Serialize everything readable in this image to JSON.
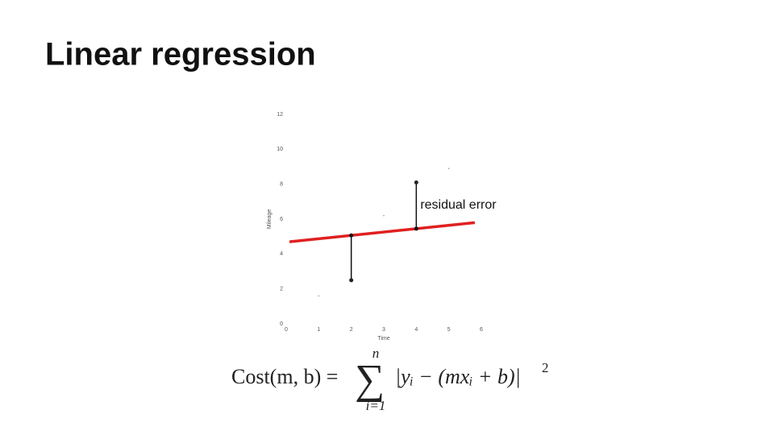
{
  "slide": {
    "title": "Linear regression",
    "formula": {
      "lhs": "Cost(m, b) =",
      "sum": "∑",
      "upper": "n",
      "lower": "i=1",
      "body": "|yᵢ − (mxᵢ + b)|",
      "power": "2"
    }
  },
  "chart_data": {
    "type": "scatter",
    "x_label": "Time",
    "y_label": "Mileage",
    "xlim": [
      0,
      6
    ],
    "ylim": [
      0,
      12
    ],
    "xticks": [
      0,
      1,
      2,
      3,
      4,
      5,
      6
    ],
    "yticks": [
      0,
      2,
      4,
      6,
      8,
      10,
      12
    ],
    "grid": false,
    "series": [
      {
        "x": [
          1,
          2,
          3,
          4,
          5
        ],
        "values": [
          1.6,
          2.5,
          6.2,
          8.1,
          8.9
        ],
        "color": "#222222"
      }
    ],
    "fit_line": {
      "x": [
        0.1,
        5.8
      ],
      "values": [
        4.7,
        5.8
      ],
      "color": "#e02020"
    },
    "residual_indices": [
      1,
      3
    ],
    "annotation": "residual error"
  }
}
